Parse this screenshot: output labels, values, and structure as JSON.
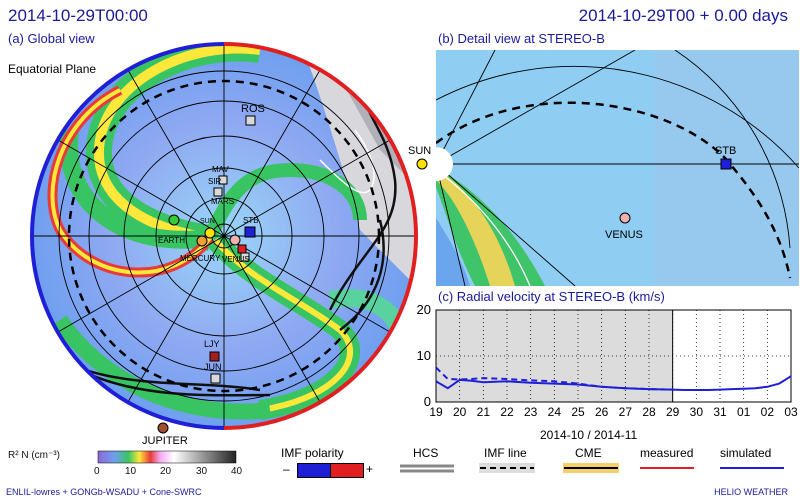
{
  "header": {
    "datetime_left": "2014-10-29T00:00",
    "datetime_right": "2014-10-29T00 + 0.00 days"
  },
  "global_view": {
    "title": "(a) Global view",
    "plane_label": "Equatorial Plane",
    "objects": [
      "ROS",
      "MAV",
      "SIR",
      "MARS",
      "SUN",
      "STB",
      "EARTH",
      "MERCURY",
      "VENUS",
      "LJY",
      "JUN",
      "JUPITER"
    ]
  },
  "detail_view": {
    "title": "(b) Detail view at STEREO-B",
    "sun_label": "SUN",
    "stb_label": "STB",
    "venus_label": "VENUS"
  },
  "velocity_chart": {
    "title": "(c) Radial velocity at STEREO-B (km/s)",
    "xlabel": "2014-10 / 2014-11"
  },
  "chart_data": {
    "type": "line",
    "title": "(c) Radial velocity at STEREO-B (km/s)",
    "xlabel": "2014-10 / 2014-11",
    "ylabel": "",
    "x_ticks": [
      "19",
      "20",
      "21",
      "22",
      "23",
      "24",
      "25",
      "26",
      "27",
      "28",
      "29",
      "30",
      "31",
      "01",
      "02",
      "03"
    ],
    "y_ticks": [
      0,
      10,
      20
    ],
    "ylim": [
      0,
      20
    ],
    "series": [
      {
        "name": "measured",
        "color": "#e02020",
        "values": []
      },
      {
        "name": "simulated",
        "color": "#1f1fd6",
        "x_index": [
          0,
          0.5,
          1,
          1.5,
          2,
          3,
          4,
          5,
          6,
          7,
          8,
          9,
          10,
          10.5,
          11,
          11.5,
          12,
          12.5,
          13,
          13.5,
          14,
          14.5,
          15
        ],
        "values": [
          4.5,
          3.0,
          4.8,
          4.6,
          4.3,
          4.5,
          4.2,
          4.0,
          3.8,
          3.3,
          3.0,
          2.8,
          2.7,
          2.6,
          2.6,
          2.6,
          2.7,
          2.8,
          2.9,
          3.0,
          3.3,
          4.0,
          5.6
        ]
      },
      {
        "name": "",
        "color": "#1f1fd6",
        "dashed": true,
        "x_index": [
          0,
          0.5,
          1,
          1.5,
          2,
          3,
          4,
          5,
          6,
          7,
          8,
          9,
          10
        ],
        "values": [
          7.5,
          5.0,
          4.9,
          5.0,
          5.2,
          5.0,
          4.7,
          4.5,
          4.0,
          3.3,
          3.0,
          2.8,
          2.7
        ]
      }
    ],
    "observed_until_index": 10,
    "grid": true
  },
  "colorbar": {
    "label": "R² N (cm⁻³)",
    "ticks": [
      "0",
      "10",
      "20",
      "30",
      "40"
    ]
  },
  "legend": {
    "imf_polarity_label": "IMF polarity",
    "minus": "–",
    "plus": "+",
    "hcs_label": "HCS",
    "imf_line_label": "IMF line",
    "cme_label": "CME",
    "measured_label": "measured",
    "simulated_label": "simulated"
  },
  "footer": {
    "model": "ENLIL-lowres + GONGb-WSADU + Cone-SWRC",
    "brand": "HELIO WEATHER"
  }
}
